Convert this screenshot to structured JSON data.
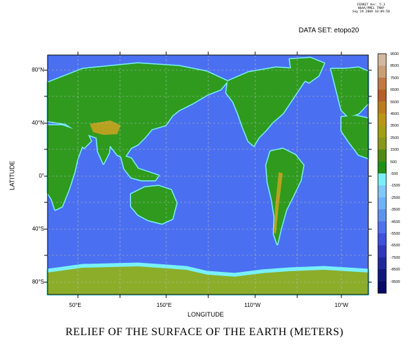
{
  "header": {
    "program": "FERRET Ver. 5.3",
    "org": "NOAA/PMEL TMAP",
    "date": "Sep 29 2009 10:09:50"
  },
  "dataset_label": "DATA SET: etopo20",
  "title": "RELIEF OF THE SURFACE OF THE EARTH (METERS)",
  "axes": {
    "x_title": "LONGITUDE",
    "y_title": "LATITUDE",
    "x_ticks": [
      "50°E",
      "150°E",
      "110°W",
      "10°W"
    ],
    "y_ticks": [
      "80°N",
      "40°N",
      "0°",
      "40°S",
      "80°S"
    ]
  },
  "colorbar": {
    "labels": [
      "9500",
      "8500",
      "7500",
      "6500",
      "5500",
      "4500",
      "3500",
      "2500",
      "1500",
      "500",
      "-500",
      "-1500",
      "-2500",
      "-3500",
      "-4500",
      "-5500",
      "-6500",
      "-7500",
      "-8500",
      "-9500"
    ],
    "colors": [
      "#d2b9a0",
      "#c8a078",
      "#c07848",
      "#b85c28",
      "#b87e18",
      "#b89810",
      "#a0a010",
      "#889818",
      "#508c10",
      "#209018",
      "#78f0f8",
      "#80c8f8",
      "#70b0f8",
      "#6090f0",
      "#5070f0",
      "#4050e0",
      "#3038c0",
      "#2028a0",
      "#101880",
      "#080868"
    ]
  },
  "map_colors": {
    "ocean": "#4a6ff0",
    "shelf": "#78f0f8",
    "land": "#2f9a1e",
    "high": "#b8a020",
    "ice": "#8cad2a",
    "grid": "#bbbbbb"
  }
}
